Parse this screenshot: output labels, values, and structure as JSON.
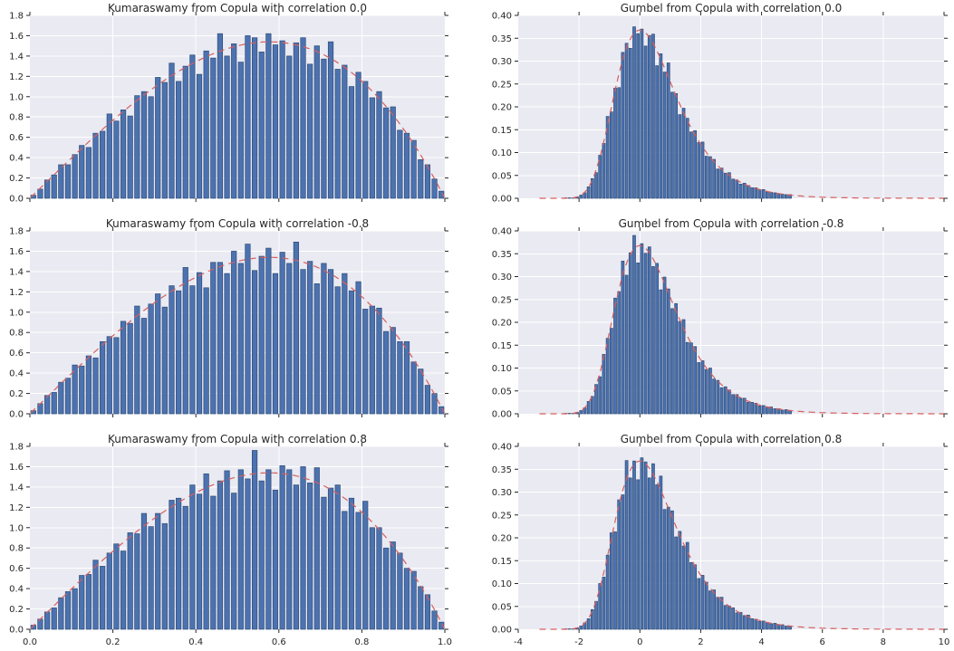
{
  "figure": {
    "background": "#ffffff"
  },
  "style": {
    "axes_background": "#eaeaf2",
    "grid_color": "#ffffff",
    "bar_fill": "#4c72b0",
    "bar_edge": "#2e4d78",
    "curve_color": "#d65f5f",
    "tick_color": "#262626",
    "text_color": "#262626",
    "title_color": "#262626"
  },
  "chart_data": [
    {
      "type": "bar",
      "kind": "histogram",
      "title": "Kumaraswamy from Copula with correlation 0.0",
      "xlabel": "",
      "ylabel": "",
      "xlim": [
        0,
        1
      ],
      "ylim": [
        0,
        1.8
      ],
      "grid": true,
      "show_xtick_labels": false,
      "xtick_vals": [
        0,
        0.2,
        0.4,
        0.6,
        0.8,
        1.0
      ],
      "xtick_labels": [
        "0.0",
        "0.2",
        "0.4",
        "0.6",
        "0.8",
        "1.0"
      ],
      "ytick_vals": [
        0,
        0.2,
        0.4,
        0.6,
        0.8,
        1.0,
        1.2,
        1.4,
        1.6,
        1.8
      ],
      "ytick_labels": [
        "0.0",
        "0.2",
        "0.4",
        "0.6",
        "0.8",
        "1.0",
        "1.2",
        "1.4",
        "1.6",
        "1.8"
      ],
      "bins": {
        "start": 0,
        "width": 0.0166667,
        "heights": [
          0.03,
          0.09,
          0.18,
          0.23,
          0.33,
          0.33,
          0.43,
          0.52,
          0.5,
          0.64,
          0.66,
          0.83,
          0.76,
          0.87,
          0.81,
          1.01,
          1.05,
          1.0,
          1.19,
          1.14,
          1.33,
          1.15,
          1.3,
          1.41,
          1.22,
          1.45,
          1.38,
          1.62,
          1.4,
          1.52,
          1.34,
          1.6,
          1.58,
          1.44,
          1.62,
          1.51,
          1.55,
          1.4,
          1.53,
          1.58,
          1.32,
          1.5,
          1.37,
          1.54,
          1.27,
          1.31,
          1.1,
          1.24,
          1.15,
          0.99,
          1.05,
          0.89,
          0.9,
          0.67,
          0.64,
          0.57,
          0.38,
          0.33,
          0.19,
          0.07
        ]
      },
      "curve": {
        "dist": "kumaraswamy",
        "a": 2,
        "b": 2,
        "range": [
          0.002,
          0.999
        ],
        "style": "dashed"
      }
    },
    {
      "type": "bar",
      "kind": "histogram",
      "title": "Gumbel from Copula with correlation 0.0",
      "xlabel": "",
      "ylabel": "",
      "xlim": [
        -4,
        10
      ],
      "ylim": [
        0,
        0.4
      ],
      "grid": true,
      "show_xtick_labels": false,
      "xtick_vals": [
        -4,
        -2,
        0,
        2,
        4,
        6,
        8,
        10
      ],
      "xtick_labels": [
        "-4",
        "-2",
        "0",
        "2",
        "4",
        "6",
        "8",
        "10"
      ],
      "ytick_vals": [
        0,
        0.05,
        0.1,
        0.15,
        0.2,
        0.25,
        0.3,
        0.35,
        0.4
      ],
      "ytick_labels": [
        "0.00",
        "0.05",
        "0.10",
        "0.15",
        "0.20",
        "0.25",
        "0.30",
        "0.35",
        "0.40"
      ],
      "bins": {
        "start": -2.5,
        "width": 0.125,
        "heights": [
          0.001,
          0.001,
          0.001,
          0.003,
          0.007,
          0.012,
          0.025,
          0.043,
          0.056,
          0.094,
          0.12,
          0.179,
          0.189,
          0.241,
          0.242,
          0.319,
          0.339,
          0.328,
          0.375,
          0.36,
          0.37,
          0.333,
          0.356,
          0.359,
          0.29,
          0.316,
          0.276,
          0.296,
          0.232,
          0.229,
          0.183,
          0.197,
          0.175,
          0.145,
          0.148,
          0.122,
          0.123,
          0.092,
          0.091,
          0.085,
          0.064,
          0.066,
          0.055,
          0.056,
          0.042,
          0.04,
          0.031,
          0.033,
          0.028,
          0.023,
          0.023,
          0.019,
          0.019,
          0.014,
          0.013,
          0.012,
          0.009,
          0.009,
          0.008,
          0.008
        ]
      },
      "curve": {
        "dist": "gumbel",
        "mu": 0,
        "beta": 1,
        "range": [
          -3.3,
          10
        ],
        "style": "dashed"
      }
    },
    {
      "type": "bar",
      "kind": "histogram",
      "title": "Kumaraswamy from Copula with correlation -0.8",
      "xlabel": "",
      "ylabel": "",
      "xlim": [
        0,
        1
      ],
      "ylim": [
        0,
        1.8
      ],
      "grid": true,
      "show_xtick_labels": false,
      "xtick_vals": [
        0,
        0.2,
        0.4,
        0.6,
        0.8,
        1.0
      ],
      "xtick_labels": [
        "0.0",
        "0.2",
        "0.4",
        "0.6",
        "0.8",
        "1.0"
      ],
      "ytick_vals": [
        0,
        0.2,
        0.4,
        0.6,
        0.8,
        1.0,
        1.2,
        1.4,
        1.6,
        1.8
      ],
      "ytick_labels": [
        "0.0",
        "0.2",
        "0.4",
        "0.6",
        "0.8",
        "1.0",
        "1.2",
        "1.4",
        "1.6",
        "1.8"
      ],
      "bins": {
        "start": 0,
        "width": 0.0166667,
        "heights": [
          0.03,
          0.1,
          0.18,
          0.21,
          0.31,
          0.35,
          0.48,
          0.47,
          0.57,
          0.55,
          0.71,
          0.76,
          0.75,
          0.91,
          0.89,
          1.06,
          0.94,
          1.08,
          1.18,
          1.05,
          1.26,
          1.21,
          1.44,
          1.26,
          1.39,
          1.24,
          1.49,
          1.49,
          1.38,
          1.6,
          1.48,
          1.67,
          1.41,
          1.55,
          1.63,
          1.38,
          1.59,
          1.48,
          1.69,
          1.42,
          1.5,
          1.28,
          1.48,
          1.42,
          1.25,
          1.38,
          1.21,
          1.3,
          1.03,
          1.06,
          1.04,
          0.81,
          0.85,
          0.71,
          0.71,
          0.51,
          0.44,
          0.28,
          0.2,
          0.07
        ]
      },
      "curve": {
        "dist": "kumaraswamy",
        "a": 2,
        "b": 2,
        "range": [
          0.002,
          0.999
        ],
        "style": "dashed"
      }
    },
    {
      "type": "bar",
      "kind": "histogram",
      "title": "Gumbel from Copula with correlation -0.8",
      "xlabel": "",
      "ylabel": "",
      "xlim": [
        -4,
        10
      ],
      "ylim": [
        0,
        0.4
      ],
      "grid": true,
      "show_xtick_labels": false,
      "xtick_vals": [
        -4,
        -2,
        0,
        2,
        4,
        6,
        8,
        10
      ],
      "xtick_labels": [
        "-4",
        "-2",
        "0",
        "2",
        "4",
        "6",
        "8",
        "10"
      ],
      "ytick_vals": [
        0,
        0.05,
        0.1,
        0.15,
        0.2,
        0.25,
        0.3,
        0.35,
        0.4
      ],
      "ytick_labels": [
        "0.00",
        "0.05",
        "0.10",
        "0.15",
        "0.20",
        "0.25",
        "0.30",
        "0.35",
        "0.40"
      ],
      "bins": {
        "start": -2.5,
        "width": 0.125,
        "heights": [
          0.001,
          0.001,
          0.001,
          0.003,
          0.007,
          0.013,
          0.027,
          0.038,
          0.064,
          0.081,
          0.13,
          0.165,
          0.187,
          0.253,
          0.267,
          0.334,
          0.303,
          0.352,
          0.39,
          0.33,
          0.372,
          0.351,
          0.365,
          0.322,
          0.329,
          0.271,
          0.299,
          0.273,
          0.23,
          0.241,
          0.202,
          0.206,
          0.156,
          0.155,
          0.147,
          0.112,
          0.116,
          0.097,
          0.1,
          0.076,
          0.073,
          0.057,
          0.059,
          0.052,
          0.042,
          0.042,
          0.034,
          0.034,
          0.025,
          0.025,
          0.023,
          0.017,
          0.018,
          0.015,
          0.015,
          0.011,
          0.011,
          0.008,
          0.009,
          0.007
        ]
      },
      "curve": {
        "dist": "gumbel",
        "mu": 0,
        "beta": 1,
        "range": [
          -3.3,
          10
        ],
        "style": "dashed"
      }
    },
    {
      "type": "bar",
      "kind": "histogram",
      "title": "Kumaraswamy from Copula with correlation 0.8",
      "xlabel": "",
      "ylabel": "",
      "xlim": [
        0,
        1
      ],
      "ylim": [
        0,
        1.8
      ],
      "grid": true,
      "show_xtick_labels": true,
      "xtick_vals": [
        0,
        0.2,
        0.4,
        0.6,
        0.8,
        1.0
      ],
      "xtick_labels": [
        "0.0",
        "0.2",
        "0.4",
        "0.6",
        "0.8",
        "1.0"
      ],
      "ytick_vals": [
        0,
        0.2,
        0.4,
        0.6,
        0.8,
        1.0,
        1.2,
        1.4,
        1.6,
        1.8
      ],
      "ytick_labels": [
        "0.0",
        "0.2",
        "0.4",
        "0.6",
        "0.8",
        "1.0",
        "1.2",
        "1.4",
        "1.6",
        "1.8"
      ],
      "bins": {
        "start": 0,
        "width": 0.0166667,
        "heights": [
          0.04,
          0.1,
          0.17,
          0.21,
          0.31,
          0.37,
          0.4,
          0.53,
          0.54,
          0.68,
          0.62,
          0.75,
          0.84,
          0.77,
          0.95,
          0.94,
          1.14,
          1.01,
          1.14,
          1.04,
          1.27,
          1.29,
          1.21,
          1.42,
          1.33,
          1.53,
          1.31,
          1.46,
          1.56,
          1.34,
          1.57,
          1.48,
          1.76,
          1.46,
          1.57,
          1.37,
          1.61,
          1.57,
          1.42,
          1.6,
          1.44,
          1.59,
          1.3,
          1.39,
          1.42,
          1.16,
          1.29,
          1.15,
          1.26,
          1.0,
          1.0,
          0.8,
          0.86,
          0.75,
          0.6,
          0.57,
          0.42,
          0.34,
          0.18,
          0.07
        ]
      },
      "curve": {
        "dist": "kumaraswamy",
        "a": 2,
        "b": 2,
        "range": [
          0.002,
          0.999
        ],
        "style": "dashed"
      }
    },
    {
      "type": "bar",
      "kind": "histogram",
      "title": "Gumbel from Copula with correlation 0.8",
      "xlabel": "",
      "ylabel": "",
      "xlim": [
        -4,
        10
      ],
      "ylim": [
        0,
        0.4
      ],
      "grid": true,
      "show_xtick_labels": true,
      "xtick_vals": [
        -4,
        -2,
        0,
        2,
        4,
        6,
        8,
        10
      ],
      "xtick_labels": [
        "-4",
        "-2",
        "0",
        "2",
        "4",
        "6",
        "8",
        "10"
      ],
      "ytick_vals": [
        0,
        0.05,
        0.1,
        0.15,
        0.2,
        0.25,
        0.3,
        0.35,
        0.4
      ],
      "ytick_labels": [
        "0.00",
        "0.05",
        "0.10",
        "0.15",
        "0.20",
        "0.25",
        "0.30",
        "0.35",
        "0.40"
      ],
      "bins": {
        "start": -2.5,
        "width": 0.125,
        "heights": [
          0.001,
          0.001,
          0.001,
          0.003,
          0.007,
          0.014,
          0.023,
          0.043,
          0.061,
          0.1,
          0.114,
          0.162,
          0.211,
          0.213,
          0.283,
          0.294,
          0.369,
          0.331,
          0.368,
          0.327,
          0.375,
          0.366,
          0.331,
          0.362,
          0.316,
          0.335,
          0.262,
          0.267,
          0.259,
          0.202,
          0.214,
          0.182,
          0.19,
          0.146,
          0.141,
          0.111,
          0.118,
          0.103,
          0.084,
          0.086,
          0.07,
          0.07,
          0.052,
          0.051,
          0.047,
          0.036,
          0.037,
          0.03,
          0.031,
          0.023,
          0.022,
          0.017,
          0.018,
          0.015,
          0.012,
          0.013,
          0.01,
          0.01,
          0.007,
          0.007
        ]
      },
      "curve": {
        "dist": "gumbel",
        "mu": 0,
        "beta": 1,
        "range": [
          -3.3,
          10
        ],
        "style": "dashed"
      }
    }
  ]
}
